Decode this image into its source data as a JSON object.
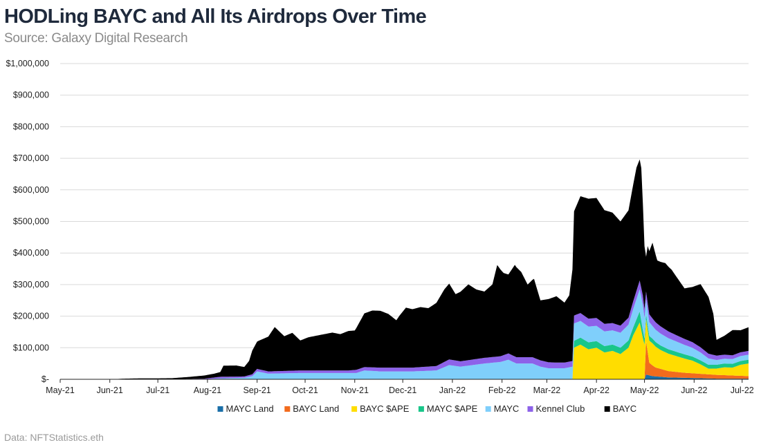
{
  "chart_data": {
    "type": "area",
    "stacked": true,
    "title": "HODLing BAYC and All Its Airdrops Over Time",
    "subtitle": "Source: Galaxy Digital Research",
    "footer": "Data: NFTStatistics.eth",
    "xlabel": "",
    "ylabel": "",
    "ylim": [
      0,
      1000000
    ],
    "yticks": [
      0,
      100000,
      200000,
      300000,
      400000,
      500000,
      600000,
      700000,
      800000,
      900000,
      1000000
    ],
    "ytick_labels": [
      "$-",
      "$100,000",
      "$200,000",
      "$300,000",
      "$400,000",
      "$500,000",
      "$600,000",
      "$700,000",
      "$800,000",
      "$900,000",
      "$1,000,000"
    ],
    "xlim_day": [
      0,
      430
    ],
    "xticks": [
      {
        "label": "May-21",
        "day": 0
      },
      {
        "label": "Jun-21",
        "day": 31
      },
      {
        "label": "Jul-21",
        "day": 61
      },
      {
        "label": "Aug-21",
        "day": 92
      },
      {
        "label": "Sep-21",
        "day": 123
      },
      {
        "label": "Oct-21",
        "day": 153
      },
      {
        "label": "Nov-21",
        "day": 184
      },
      {
        "label": "Dec-21",
        "day": 214
      },
      {
        "label": "Jan-22",
        "day": 245
      },
      {
        "label": "Feb-22",
        "day": 276
      },
      {
        "label": "Mar-22",
        "day": 304
      },
      {
        "label": "Apr-22",
        "day": 335
      },
      {
        "label": "May-22",
        "day": 365
      },
      {
        "label": "Jun-22",
        "day": 396
      },
      {
        "label": "Jul-22",
        "day": 426
      }
    ],
    "legend_position": "bottom",
    "series": [
      {
        "name": "MAYC Land",
        "color": "#1a6fa8",
        "points": [
          [
            0,
            0
          ],
          [
            365,
            0
          ],
          [
            366,
            15000
          ],
          [
            370,
            10000
          ],
          [
            380,
            6000
          ],
          [
            395,
            4000
          ],
          [
            410,
            2000
          ],
          [
            430,
            2000
          ]
        ]
      },
      {
        "name": "BAYC Land",
        "color": "#f26b1d",
        "points": [
          [
            0,
            0
          ],
          [
            365,
            0
          ],
          [
            366,
            105000
          ],
          [
            368,
            40000
          ],
          [
            372,
            28000
          ],
          [
            380,
            20000
          ],
          [
            390,
            16000
          ],
          [
            400,
            14000
          ],
          [
            410,
            12000
          ],
          [
            420,
            10000
          ],
          [
            430,
            8000
          ]
        ]
      },
      {
        "name": "BAYC $APE",
        "color": "#ffdd00",
        "points": [
          [
            0,
            0
          ],
          [
            320,
            0
          ],
          [
            321,
            100000
          ],
          [
            325,
            110000
          ],
          [
            330,
            95000
          ],
          [
            335,
            100000
          ],
          [
            340,
            85000
          ],
          [
            345,
            90000
          ],
          [
            350,
            80000
          ],
          [
            355,
            100000
          ],
          [
            358,
            140000
          ],
          [
            362,
            180000
          ],
          [
            364,
            130000
          ],
          [
            365,
            110000
          ],
          [
            366,
            70000
          ],
          [
            370,
            70000
          ],
          [
            375,
            60000
          ],
          [
            380,
            55000
          ],
          [
            390,
            45000
          ],
          [
            395,
            40000
          ],
          [
            400,
            30000
          ],
          [
            405,
            18000
          ],
          [
            410,
            20000
          ],
          [
            415,
            25000
          ],
          [
            420,
            25000
          ],
          [
            425,
            35000
          ],
          [
            430,
            40000
          ]
        ]
      },
      {
        "name": "MAYC $APE",
        "color": "#19c68a",
        "points": [
          [
            0,
            0
          ],
          [
            320,
            0
          ],
          [
            321,
            22000
          ],
          [
            330,
            22000
          ],
          [
            340,
            20000
          ],
          [
            350,
            20000
          ],
          [
            358,
            25000
          ],
          [
            362,
            35000
          ],
          [
            366,
            15000
          ],
          [
            380,
            14000
          ],
          [
            395,
            13000
          ],
          [
            410,
            12000
          ],
          [
            430,
            12000
          ]
        ]
      },
      {
        "name": "MAYC",
        "color": "#7fcffb",
        "points": [
          [
            0,
            0
          ],
          [
            90,
            0
          ],
          [
            100,
            3000
          ],
          [
            115,
            5000
          ],
          [
            120,
            10000
          ],
          [
            123,
            25000
          ],
          [
            130,
            18000
          ],
          [
            150,
            20000
          ],
          [
            170,
            20000
          ],
          [
            185,
            20000
          ],
          [
            190,
            28000
          ],
          [
            200,
            25000
          ],
          [
            220,
            25000
          ],
          [
            235,
            28000
          ],
          [
            243,
            45000
          ],
          [
            250,
            40000
          ],
          [
            265,
            50000
          ],
          [
            275,
            55000
          ],
          [
            280,
            62000
          ],
          [
            285,
            50000
          ],
          [
            295,
            50000
          ],
          [
            300,
            40000
          ],
          [
            305,
            35000
          ],
          [
            315,
            35000
          ],
          [
            320,
            40000
          ],
          [
            321,
            55000
          ],
          [
            330,
            50000
          ],
          [
            345,
            45000
          ],
          [
            355,
            50000
          ],
          [
            362,
            70000
          ],
          [
            364,
            80000
          ],
          [
            366,
            48000
          ],
          [
            370,
            40000
          ],
          [
            380,
            35000
          ],
          [
            390,
            30000
          ],
          [
            400,
            25000
          ],
          [
            410,
            15000
          ],
          [
            420,
            15000
          ],
          [
            430,
            16000
          ]
        ]
      },
      {
        "name": "Kennel Club",
        "color": "#8d62e9",
        "points": [
          [
            0,
            0
          ],
          [
            60,
            0
          ],
          [
            90,
            2000
          ],
          [
            100,
            5000
          ],
          [
            115,
            4000
          ],
          [
            120,
            6000
          ],
          [
            123,
            8000
          ],
          [
            130,
            7000
          ],
          [
            150,
            8000
          ],
          [
            180,
            8000
          ],
          [
            185,
            10000
          ],
          [
            200,
            12000
          ],
          [
            220,
            12000
          ],
          [
            235,
            14000
          ],
          [
            243,
            18000
          ],
          [
            250,
            17000
          ],
          [
            265,
            18000
          ],
          [
            275,
            18000
          ],
          [
            280,
            20000
          ],
          [
            290,
            20000
          ],
          [
            300,
            20000
          ],
          [
            310,
            18000
          ],
          [
            320,
            18000
          ],
          [
            321,
            25000
          ],
          [
            335,
            25000
          ],
          [
            345,
            23000
          ],
          [
            355,
            22000
          ],
          [
            362,
            28000
          ],
          [
            364,
            30000
          ],
          [
            366,
            25000
          ],
          [
            375,
            23000
          ],
          [
            385,
            20000
          ],
          [
            395,
            18000
          ],
          [
            405,
            15000
          ],
          [
            420,
            12000
          ],
          [
            430,
            12000
          ]
        ]
      },
      {
        "name": "BAYC",
        "color": "#000000",
        "points": [
          [
            0,
            0
          ],
          [
            30,
            0
          ],
          [
            40,
            2000
          ],
          [
            50,
            3000
          ],
          [
            60,
            3000
          ],
          [
            70,
            3000
          ],
          [
            80,
            6000
          ],
          [
            90,
            10000
          ],
          [
            96,
            12000
          ],
          [
            100,
            15000
          ],
          [
            102,
            35000
          ],
          [
            110,
            35000
          ],
          [
            115,
            30000
          ],
          [
            118,
            45000
          ],
          [
            120,
            75000
          ],
          [
            124,
            90000
          ],
          [
            130,
            110000
          ],
          [
            134,
            140000
          ],
          [
            138,
            120000
          ],
          [
            140,
            110000
          ],
          [
            145,
            120000
          ],
          [
            150,
            95000
          ],
          [
            155,
            105000
          ],
          [
            160,
            110000
          ],
          [
            165,
            115000
          ],
          [
            170,
            120000
          ],
          [
            175,
            115000
          ],
          [
            180,
            125000
          ],
          [
            184,
            125000
          ],
          [
            186,
            140000
          ],
          [
            190,
            170000
          ],
          [
            195,
            180000
          ],
          [
            200,
            180000
          ],
          [
            205,
            170000
          ],
          [
            210,
            150000
          ],
          [
            212,
            165000
          ],
          [
            216,
            190000
          ],
          [
            220,
            185000
          ],
          [
            225,
            190000
          ],
          [
            230,
            185000
          ],
          [
            235,
            200000
          ],
          [
            240,
            230000
          ],
          [
            243,
            240000
          ],
          [
            247,
            210000
          ],
          [
            250,
            220000
          ],
          [
            255,
            240000
          ],
          [
            260,
            220000
          ],
          [
            265,
            210000
          ],
          [
            270,
            230000
          ],
          [
            273,
            290000
          ],
          [
            277,
            260000
          ],
          [
            280,
            250000
          ],
          [
            284,
            290000
          ],
          [
            288,
            270000
          ],
          [
            292,
            230000
          ],
          [
            296,
            250000
          ],
          [
            300,
            190000
          ],
          [
            305,
            200000
          ],
          [
            310,
            210000
          ],
          [
            315,
            190000
          ],
          [
            318,
            210000
          ],
          [
            321,
            330000
          ],
          [
            325,
            370000
          ],
          [
            330,
            380000
          ],
          [
            335,
            380000
          ],
          [
            340,
            360000
          ],
          [
            345,
            350000
          ],
          [
            350,
            330000
          ],
          [
            355,
            340000
          ],
          [
            360,
            390000
          ],
          [
            363,
            380000
          ],
          [
            366,
            110000
          ],
          [
            367,
            180000
          ],
          [
            370,
            240000
          ],
          [
            373,
            200000
          ],
          [
            378,
            210000
          ],
          [
            382,
            200000
          ],
          [
            386,
            180000
          ],
          [
            390,
            160000
          ],
          [
            395,
            175000
          ],
          [
            400,
            200000
          ],
          [
            405,
            180000
          ],
          [
            408,
            130000
          ],
          [
            410,
            50000
          ],
          [
            415,
            60000
          ],
          [
            420,
            80000
          ],
          [
            425,
            70000
          ],
          [
            430,
            75000
          ]
        ]
      }
    ]
  }
}
